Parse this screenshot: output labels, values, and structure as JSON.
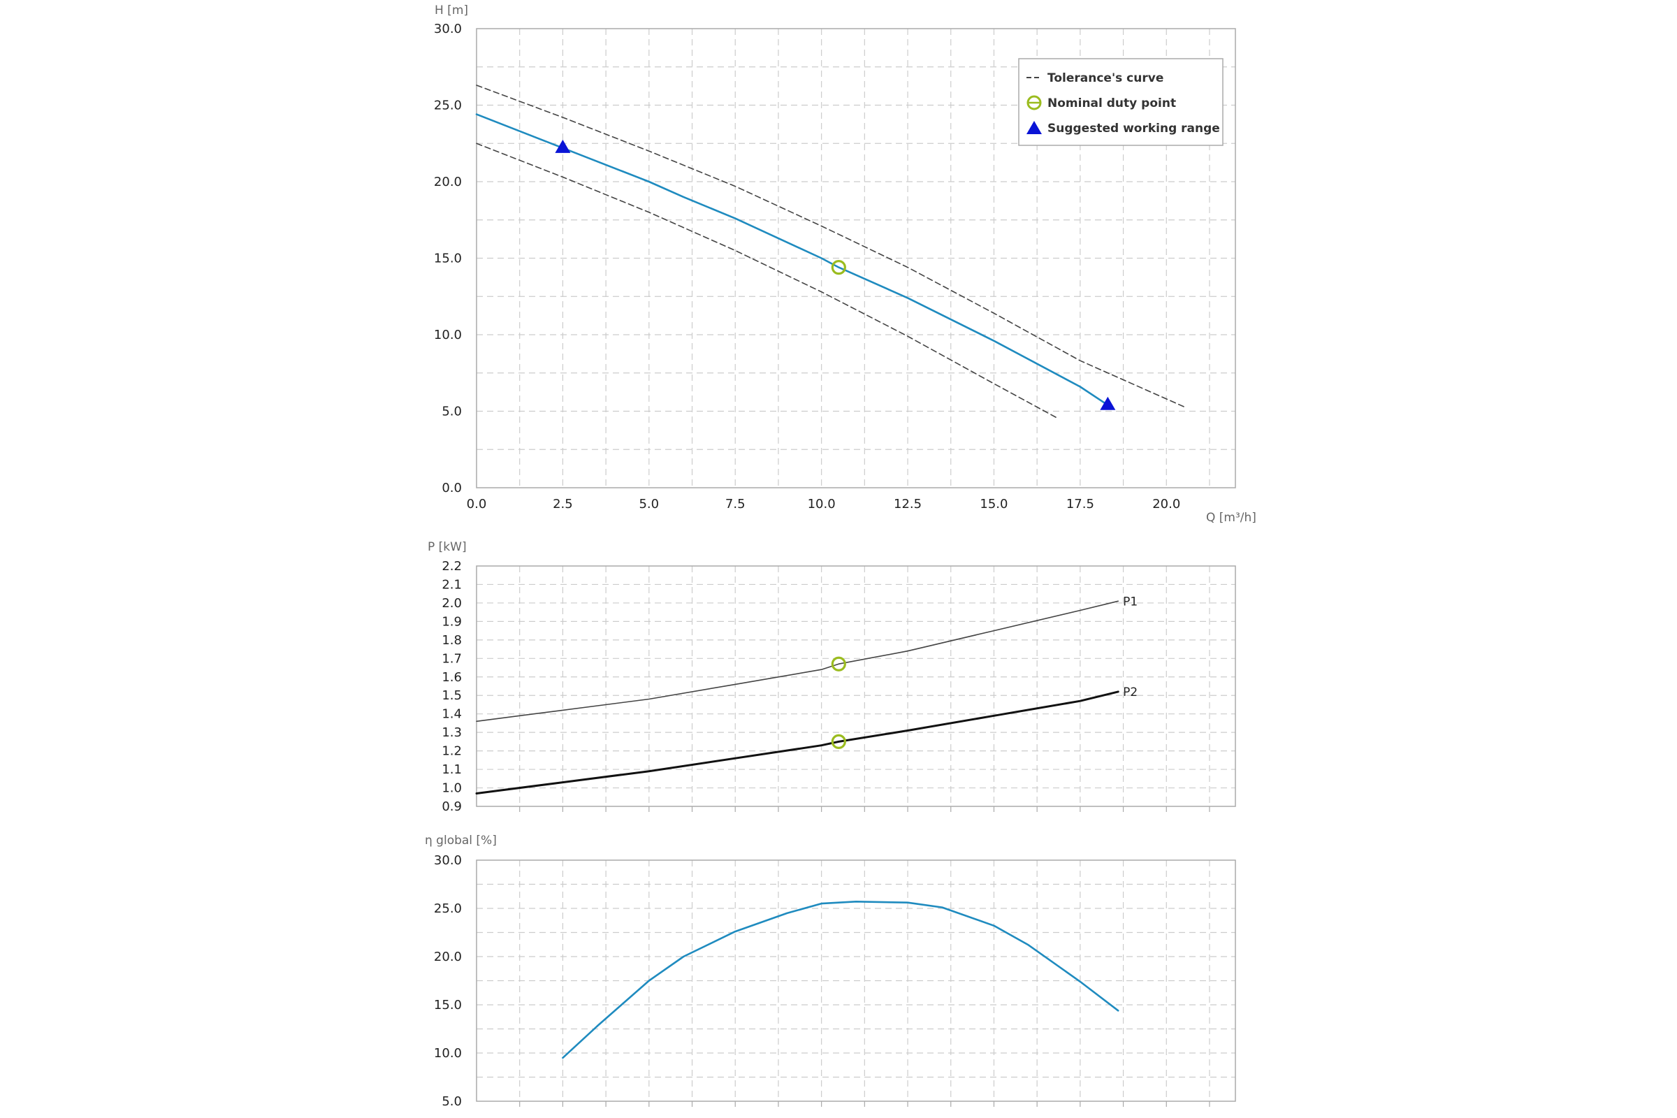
{
  "colors": {
    "main_curve": "#1f8bbf",
    "tolerance": "#444444",
    "duty_point": "#9bbc1f",
    "range_marker": "#0a14d6",
    "grid": "#cccccc",
    "frame": "#aaaaaa",
    "p1": "#444444",
    "p2": "#111111"
  },
  "x_axis": {
    "label": "Q [m³/h]",
    "ticks": [
      0.0,
      2.5,
      5.0,
      7.5,
      10.0,
      12.5,
      15.0,
      17.5,
      20.0
    ],
    "tick_labels": [
      "0.0",
      "2.5",
      "5.0",
      "7.5",
      "10.0",
      "12.5",
      "15.0",
      "17.5",
      "20.0"
    ],
    "range": [
      0,
      22
    ]
  },
  "legend": {
    "tolerance": "Tolerance's curve",
    "duty": "Nominal duty point",
    "range": "Suggested working range"
  },
  "chart_data": [
    {
      "type": "line",
      "ylabel": "H [m]",
      "xlabel": "Q [m³/h]",
      "ylim": [
        0,
        30
      ],
      "y_ticks": [
        0.0,
        5.0,
        10.0,
        15.0,
        20.0,
        25.0,
        30.0
      ],
      "y_tick_labels": [
        "0.0",
        "5.0",
        "10.0",
        "15.0",
        "20.0",
        "25.0",
        "30.0"
      ],
      "grid": true,
      "legend_position": "top-right",
      "series": [
        {
          "key": "head",
          "x": [
            0,
            2.5,
            5,
            6,
            7.5,
            10,
            10.5,
            12.5,
            15,
            17.5,
            18.3
          ],
          "y": [
            24.4,
            22.2,
            20.0,
            19.0,
            17.6,
            15.0,
            14.4,
            12.4,
            9.6,
            6.6,
            5.4
          ]
        },
        {
          "key": "tol_upper",
          "name": "Tolerance's curve",
          "x": [
            0,
            2.5,
            5,
            7.5,
            10,
            12.5,
            15,
            17.5,
            20.5
          ],
          "y": [
            26.3,
            24.2,
            22.0,
            19.7,
            17.1,
            14.4,
            11.4,
            8.3,
            5.3
          ]
        },
        {
          "key": "tol_lower",
          "x": [
            0,
            2.5,
            5,
            7.5,
            10,
            12.5,
            15,
            16.8
          ],
          "y": [
            22.5,
            20.3,
            18.0,
            15.5,
            12.8,
            9.9,
            6.8,
            4.6
          ]
        }
      ],
      "points": [
        {
          "key": "duty",
          "name": "Nominal duty point",
          "x": 10.5,
          "y": 14.4
        },
        {
          "key": "range",
          "name": "Suggested working range",
          "x": 2.5,
          "y": 22.2
        },
        {
          "key": "range",
          "name": "Suggested working range",
          "x": 18.3,
          "y": 5.4
        }
      ]
    },
    {
      "type": "line",
      "ylabel": "P [kW]",
      "ylim": [
        0.9,
        2.2
      ],
      "y_ticks": [
        0.9,
        1.0,
        1.1,
        1.2,
        1.3,
        1.4,
        1.5,
        1.6,
        1.7,
        1.8,
        1.9,
        2.0,
        2.1,
        2.2
      ],
      "y_tick_labels": [
        "0.9",
        "1.0",
        "1.1",
        "1.2",
        "1.3",
        "1.4",
        "1.5",
        "1.6",
        "1.7",
        "1.8",
        "1.9",
        "2.0",
        "2.1",
        "2.2"
      ],
      "grid": true,
      "series": [
        {
          "key": "p1",
          "name": "P1",
          "x": [
            0,
            2.5,
            5,
            7.5,
            10,
            10.5,
            12.5,
            15,
            17.5,
            18.6
          ],
          "y": [
            1.36,
            1.42,
            1.48,
            1.56,
            1.64,
            1.67,
            1.74,
            1.85,
            1.96,
            2.01
          ]
        },
        {
          "key": "p2",
          "name": "P2",
          "x": [
            0,
            2.5,
            5,
            7.5,
            10,
            10.5,
            12.5,
            15,
            17.5,
            18.6
          ],
          "y": [
            0.97,
            1.03,
            1.09,
            1.16,
            1.23,
            1.25,
            1.31,
            1.39,
            1.47,
            1.52
          ]
        }
      ],
      "points": [
        {
          "key": "duty",
          "name": "Nominal duty point",
          "x": 10.5,
          "y": 1.67
        },
        {
          "key": "duty",
          "name": "Nominal duty point",
          "x": 10.5,
          "y": 1.25
        }
      ]
    },
    {
      "type": "line",
      "ylabel": "η global [%]",
      "ylim": [
        5,
        30
      ],
      "y_ticks": [
        5.0,
        10.0,
        15.0,
        20.0,
        25.0,
        30.0
      ],
      "y_tick_labels": [
        "5.0",
        "10.0",
        "15.0",
        "20.0",
        "25.0",
        "30.0"
      ],
      "grid": true,
      "series": [
        {
          "key": "eff",
          "x": [
            2.5,
            3.5,
            5,
            6,
            7.5,
            9,
            10,
            11,
            12.5,
            13.5,
            15,
            16,
            17.5,
            18.6
          ],
          "y": [
            9.5,
            12.8,
            17.5,
            20.0,
            22.6,
            24.5,
            25.5,
            25.7,
            25.6,
            25.1,
            23.2,
            21.2,
            17.4,
            14.4
          ]
        }
      ],
      "points": []
    }
  ]
}
